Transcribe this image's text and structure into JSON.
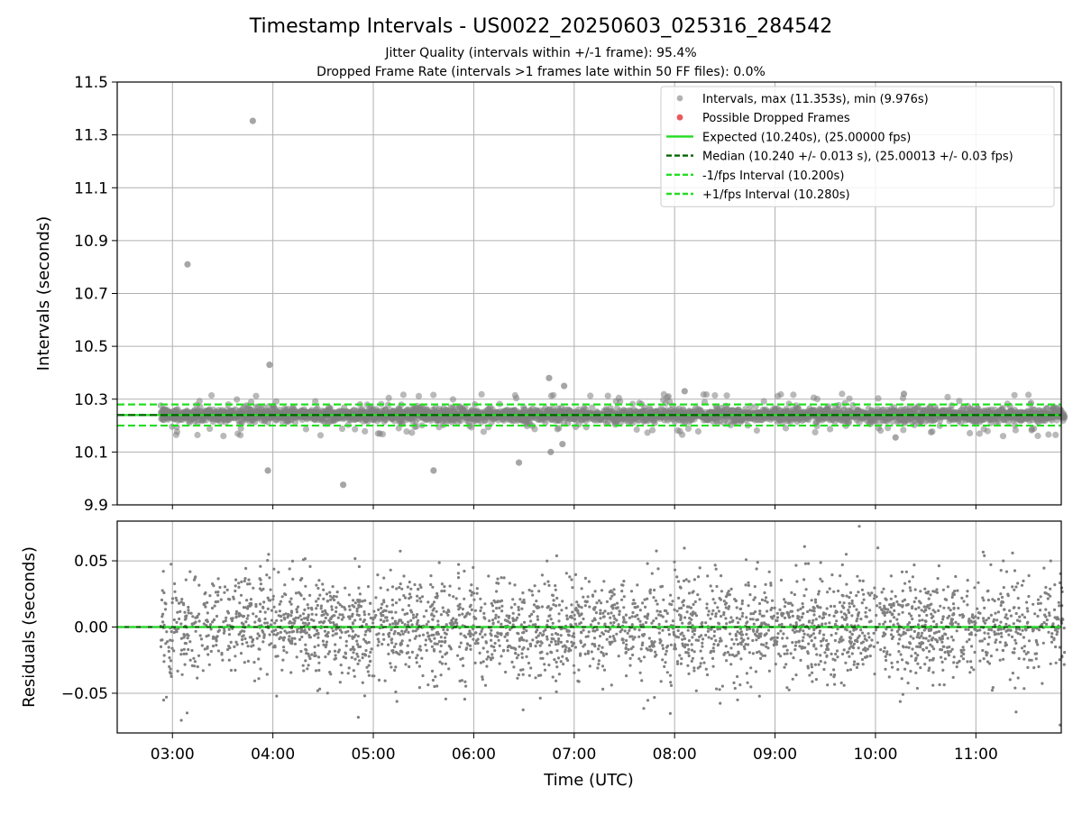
{
  "title": "Timestamp Intervals - US0022_20250603_025316_284542",
  "subtitle_lines": [
    "Jitter Quality (intervals within +/-1 frame): 95.4%",
    "Dropped Frame Rate (intervals >1 frames late within 50 FF files): 0.0%"
  ],
  "colors": {
    "points": "#808080",
    "dropped": "#e8474a",
    "expected": "#22dd22",
    "median": "#006400",
    "bounds": "#22dd22",
    "grid": "#b0b0b0"
  },
  "chart_data": [
    {
      "type": "scatter",
      "ylabel": "Intervals (seconds)",
      "xlabel": "",
      "x_range_hours": [
        2.45,
        11.85
      ],
      "ylim": [
        9.9,
        11.5
      ],
      "yticks": [
        9.9,
        10.1,
        10.3,
        10.5,
        10.7,
        10.9,
        11.1,
        11.3,
        11.5
      ],
      "ytick_labels": [
        "9.9",
        "10.1",
        "10.3",
        "10.5",
        "10.7",
        "10.9",
        "11.1",
        "11.3",
        "11.5"
      ],
      "grid": true,
      "legend_position": "upper right",
      "legend": [
        {
          "label": "Intervals, max (11.353s), min (9.976s)",
          "kind": "marker",
          "color": "#aaaaaa"
        },
        {
          "label": "Possible Dropped Frames",
          "kind": "marker",
          "color": "#e8474a"
        },
        {
          "label": "Expected (10.240s), (25.00000 fps)",
          "kind": "line",
          "color": "#22dd22"
        },
        {
          "label": "Median (10.240 +/- 0.013 s), (25.00013 +/- 0.03 fps)",
          "kind": "dashed",
          "color": "#006400"
        },
        {
          "label": "-1/fps Interval (10.200s)",
          "kind": "dashed",
          "color": "#22dd22"
        },
        {
          "label": "+1/fps Interval (10.280s)",
          "kind": "dashed",
          "color": "#22dd22"
        }
      ],
      "series": [
        {
          "name": "Intervals",
          "x_start": "02:53",
          "x_end": "11:53",
          "center": 10.24,
          "spread": 0.013,
          "count": 3100,
          "outliers": [
            {
              "x": "03:48",
              "y": 11.353
            },
            {
              "x": "03:09",
              "y": 10.81
            },
            {
              "x": "03:58",
              "y": 10.43
            },
            {
              "x": "04:42",
              "y": 9.976
            },
            {
              "x": "03:57",
              "y": 10.03
            },
            {
              "x": "05:36",
              "y": 10.03
            },
            {
              "x": "06:27",
              "y": 10.06
            },
            {
              "x": "06:45",
              "y": 10.38
            },
            {
              "x": "06:54",
              "y": 10.35
            },
            {
              "x": "06:46",
              "y": 10.1
            },
            {
              "x": "06:53",
              "y": 10.13
            },
            {
              "x": "08:06",
              "y": 10.33
            },
            {
              "x": "10:17",
              "y": 10.32
            },
            {
              "x": "10:12",
              "y": 10.155
            }
          ]
        },
        {
          "name": "Possible Dropped Frames",
          "points": []
        }
      ],
      "reference_lines": [
        {
          "name": "Expected",
          "y": 10.24
        },
        {
          "name": "Median",
          "y": 10.24
        },
        {
          "name": "-1/fps Interval",
          "y": 10.2
        },
        {
          "name": "+1/fps Interval",
          "y": 10.28
        }
      ]
    },
    {
      "type": "scatter",
      "ylabel": "Residuals (seconds)",
      "xlabel": "Time (UTC)",
      "x_range_hours": [
        2.45,
        11.85
      ],
      "ylim": [
        -0.08,
        0.08
      ],
      "yticks": [
        -0.05,
        0.0,
        0.05
      ],
      "ytick_labels": [
        "−0.05",
        "0.00",
        "0.05"
      ],
      "xticks_hours": [
        3,
        4,
        5,
        6,
        7,
        8,
        9,
        10,
        11
      ],
      "xtick_labels": [
        "03:00",
        "04:00",
        "05:00",
        "06:00",
        "07:00",
        "08:00",
        "09:00",
        "10:00",
        "11:00"
      ],
      "grid": true,
      "series": [
        {
          "name": "Residuals",
          "x_start": "02:53",
          "x_end": "11:53",
          "center": 0.0,
          "spread": 0.02,
          "count": 3100
        }
      ],
      "reference_lines": [
        {
          "name": "Zero",
          "y": 0.0
        }
      ]
    }
  ]
}
